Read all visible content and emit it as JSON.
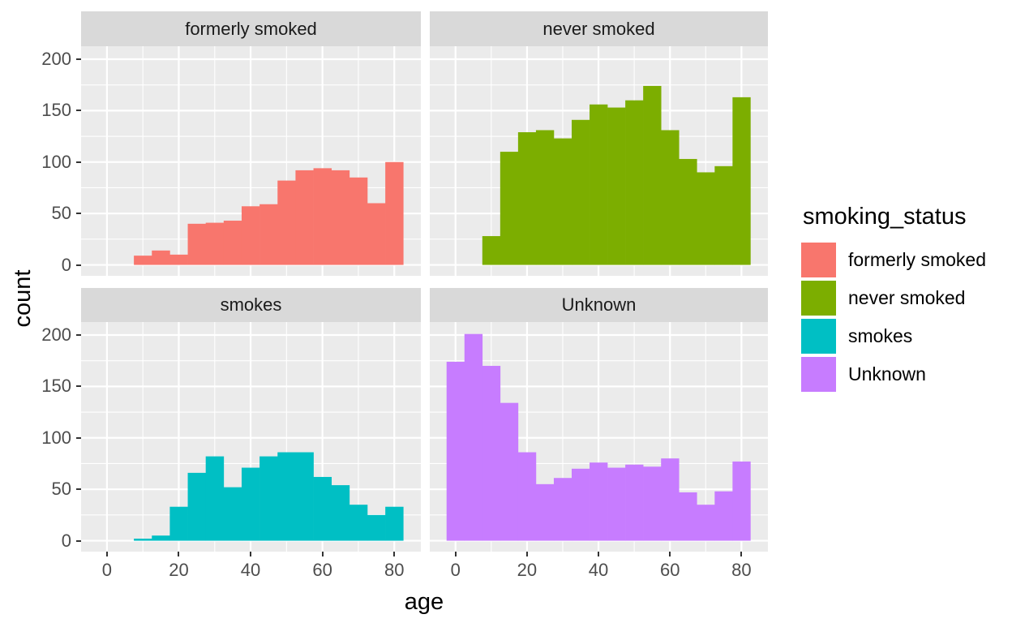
{
  "chart_data": {
    "type": "bar",
    "subtype": "faceted-histogram",
    "facet_variable": "smoking_status",
    "xlabel": "age",
    "ylabel": "count",
    "x_ticks": [
      0,
      20,
      40,
      60,
      80
    ],
    "y_ticks": [
      0,
      50,
      100,
      150,
      200
    ],
    "x_minor": [
      10,
      30,
      50,
      70
    ],
    "y_minor": [
      25,
      75,
      125,
      175
    ],
    "xlim": [
      -7.2,
      87.4
    ],
    "ylim": [
      -10.6,
      212.6
    ],
    "grid": "on",
    "legend_position": "right",
    "binwidth": 5,
    "facets": [
      {
        "label": "formerly smoked",
        "color": "#F8766D",
        "bin_start": 7.5,
        "counts": [
          9,
          14,
          10,
          40,
          41,
          43,
          57,
          59,
          82,
          92,
          94,
          92,
          85,
          60,
          100
        ]
      },
      {
        "label": "never smoked",
        "color": "#7CAE00",
        "bin_start": 7.5,
        "counts": [
          28,
          110,
          129,
          131,
          123,
          141,
          156,
          153,
          160,
          174,
          131,
          103,
          90,
          96,
          163
        ]
      },
      {
        "label": "smokes",
        "color": "#00BFC4",
        "bin_start": 7.5,
        "counts": [
          2,
          5,
          33,
          66,
          82,
          52,
          71,
          82,
          86,
          86,
          62,
          54,
          35,
          25,
          33
        ]
      },
      {
        "label": "Unknown",
        "color": "#C77CFF",
        "bin_start": -2.5,
        "counts": [
          174,
          201,
          170,
          134,
          86,
          55,
          61,
          70,
          76,
          71,
          74,
          72,
          80,
          47,
          35,
          48,
          77
        ]
      }
    ],
    "legend": {
      "title": "smoking_status",
      "items": [
        {
          "label": "formerly smoked",
          "color": "#F8766D"
        },
        {
          "label": "never smoked",
          "color": "#7CAE00"
        },
        {
          "label": "smokes",
          "color": "#00BFC4"
        },
        {
          "label": "Unknown",
          "color": "#C77CFF"
        }
      ]
    }
  },
  "style": {
    "panel_bg": "#EBEBEB",
    "strip_bg": "#D9D9D9",
    "grid_color": "#FFFFFF",
    "tick_mark_color": "#333333",
    "tick_label_color": "#4D4D4D",
    "background": "#FFFFFF"
  }
}
